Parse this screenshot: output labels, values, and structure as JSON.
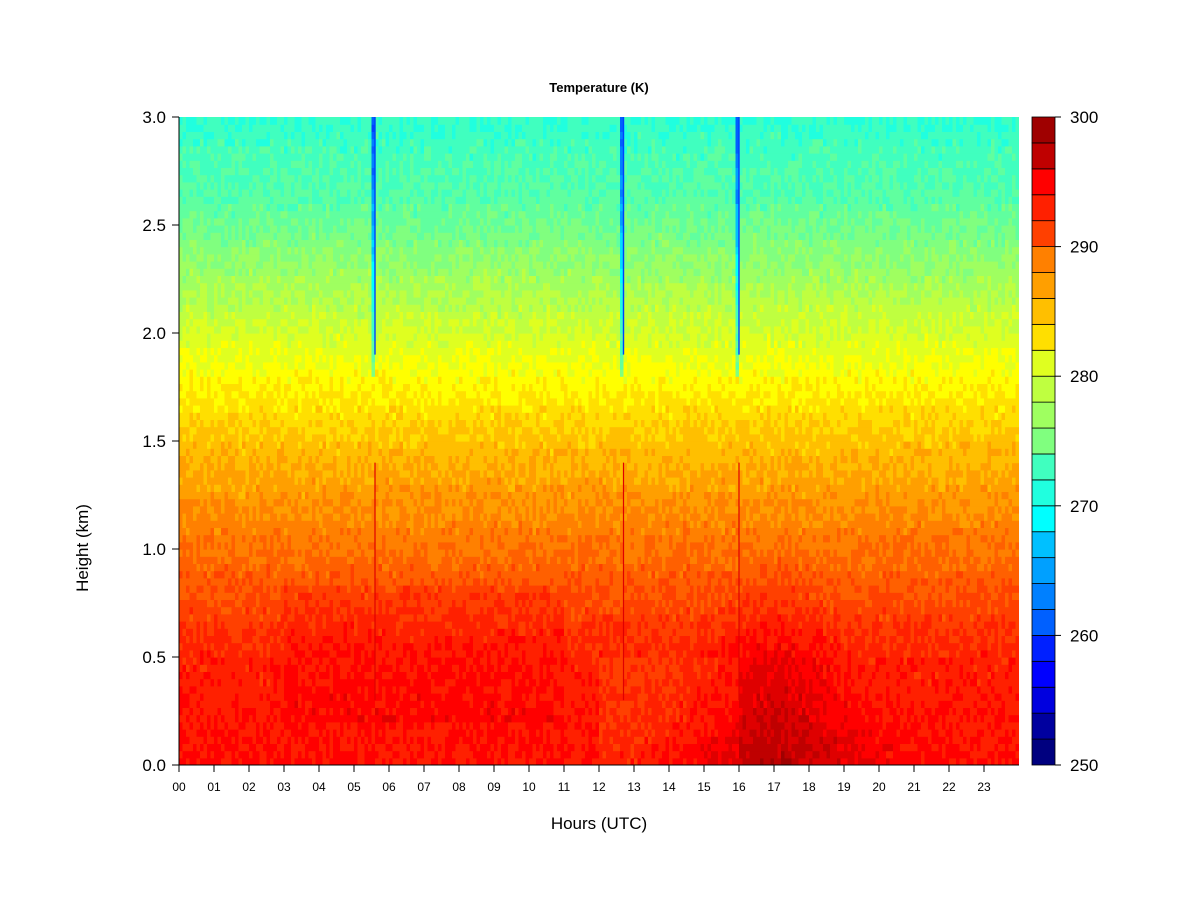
{
  "chart_data": {
    "type": "heatmap",
    "title": "Temperature (K)",
    "xlabel": "Hours (UTC)",
    "ylabel": "Height (km)",
    "x_ticks": [
      "00",
      "01",
      "02",
      "03",
      "04",
      "05",
      "06",
      "07",
      "08",
      "09",
      "10",
      "11",
      "12",
      "13",
      "14",
      "15",
      "16",
      "17",
      "18",
      "19",
      "20",
      "21",
      "22",
      "23"
    ],
    "x_range": [
      0,
      24
    ],
    "y_ticks": [
      0.0,
      0.5,
      1.0,
      1.5,
      2.0,
      2.5,
      3.0
    ],
    "y_range": [
      0,
      3.0
    ],
    "colorbar": {
      "min": 250,
      "max": 300,
      "step": 2,
      "ticks": [
        250,
        260,
        270,
        280,
        290,
        300
      ]
    },
    "palette": [
      "#00007f",
      "#00009f",
      "#0000bf",
      "#0000df",
      "#0000ff",
      "#0020ff",
      "#0040ff",
      "#0060ff",
      "#0080ff",
      "#00a0ff",
      "#00c0ff",
      "#00e0ff",
      "#00ffff",
      "#20ffdf",
      "#40ffbf",
      "#60ff9f",
      "#80ff7f",
      "#9fff60",
      "#bfff40",
      "#dfff20",
      "#ffff00",
      "#ffdf00",
      "#ffbf00",
      "#ff9f00",
      "#ff8000",
      "#ff6000",
      "#ff4000",
      "#ff2000",
      "#ff0000",
      "#df0000",
      "#bf0000",
      "#9f0000",
      "#7f0000"
    ],
    "profile": {
      "heights_km": [
        0.0,
        0.5,
        1.0,
        1.5,
        1.8,
        2.0,
        2.3,
        2.6,
        3.0
      ],
      "temperature_k": [
        294,
        293,
        289,
        285,
        282,
        280,
        277,
        274,
        272
      ]
    },
    "features": {
      "surface_warm_peak_hour": 17,
      "surface_warm_peak_k": 298,
      "spike_hours": [
        5.6,
        12.7,
        16.0
      ]
    },
    "grid": false,
    "legend": "colorbar-right"
  }
}
